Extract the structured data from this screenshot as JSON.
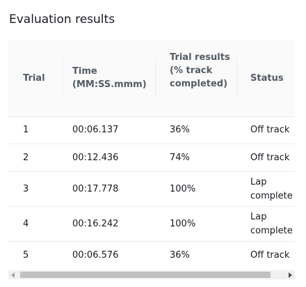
{
  "title": "Evaluation results",
  "table": {
    "headers": {
      "trial": "Trial",
      "time": "Time (MM:SS.mmm)",
      "results": "Trial results (% track completed)",
      "status": "Status"
    },
    "rows": [
      {
        "trial": "1",
        "time": "00:06.137",
        "results": "36%",
        "status": "Off track"
      },
      {
        "trial": "2",
        "time": "00:12.436",
        "results": "74%",
        "status": "Off track"
      },
      {
        "trial": "3",
        "time": "00:17.778",
        "results": "100%",
        "status": "Lap complete"
      },
      {
        "trial": "4",
        "time": "00:16.242",
        "results": "100%",
        "status": "Lap complete"
      },
      {
        "trial": "5",
        "time": "00:06.576",
        "results": "36%",
        "status": "Off track"
      }
    ]
  },
  "scrollbar": {
    "left_icon": "arrow-left-icon",
    "right_icon": "arrow-right-icon"
  }
}
